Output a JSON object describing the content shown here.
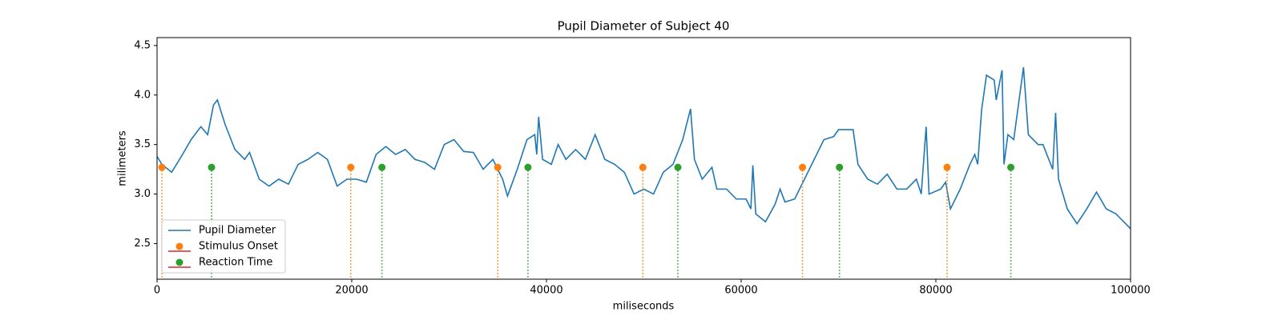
{
  "chart_data": {
    "type": "line",
    "title": "Pupil Diameter of Subject 40",
    "x_label": "miliseconds",
    "y_label": "milimeters",
    "xlim": [
      0,
      100000
    ],
    "ylim": [
      2.14,
      4.58
    ],
    "xticks": [
      0,
      20000,
      40000,
      60000,
      80000,
      100000
    ],
    "yticks": [
      2.5,
      {
        "value": 3,
        "label": "3.0"
      },
      3.5,
      {
        "value": 4,
        "label": "4.0"
      },
      4.5
    ],
    "legend": "lower left",
    "series": [
      {
        "name": "Pupil Diameter",
        "type": "line",
        "color": "#1f77b4",
        "x": [
          0,
          500,
          1500,
          2500,
          3500,
          4500,
          5200,
          5800,
          6200,
          7000,
          8000,
          9000,
          9500,
          10500,
          11500,
          12500,
          13500,
          14500,
          15500,
          16500,
          17500,
          18500,
          19500,
          20500,
          21500,
          22500,
          23500,
          24500,
          25500,
          26500,
          27500,
          28500,
          29500,
          30500,
          31500,
          32500,
          33500,
          34500,
          35500,
          36000,
          37000,
          38000,
          38800,
          39000,
          39200,
          39600,
          40500,
          41200,
          42000,
          43000,
          44000,
          45000,
          46000,
          47000,
          48000,
          49000,
          50000,
          51000,
          52000,
          53000,
          54000,
          54800,
          55200,
          56000,
          57000,
          57500,
          58500,
          59500,
          60500,
          61000,
          61200,
          61500,
          62500,
          63500,
          64000,
          64500,
          65500,
          66500,
          67500,
          68500,
          69500,
          70000,
          71500,
          72000,
          73000,
          74000,
          75000,
          76000,
          77000,
          78000,
          78500,
          79000,
          79300,
          80500,
          81000,
          81500,
          82500,
          83500,
          84000,
          84300,
          84700,
          85200,
          86000,
          86200,
          86800,
          87000,
          87400,
          88000,
          89000,
          89500,
          90500,
          91000,
          92000,
          92300,
          92600,
          93500,
          94500,
          95500,
          96500,
          97500,
          98500,
          100000
        ],
        "values": [
          3.38,
          3.3,
          3.22,
          3.38,
          3.55,
          3.68,
          3.6,
          3.9,
          3.95,
          3.7,
          3.45,
          3.35,
          3.42,
          3.15,
          3.08,
          3.15,
          3.1,
          3.3,
          3.35,
          3.42,
          3.35,
          3.08,
          3.15,
          3.15,
          3.12,
          3.4,
          3.48,
          3.4,
          3.45,
          3.35,
          3.32,
          3.25,
          3.5,
          3.55,
          3.43,
          3.42,
          3.25,
          3.35,
          3.15,
          2.98,
          3.25,
          3.55,
          3.6,
          3.4,
          3.78,
          3.35,
          3.3,
          3.5,
          3.35,
          3.45,
          3.35,
          3.6,
          3.35,
          3.3,
          3.22,
          3.0,
          3.05,
          3.0,
          3.22,
          3.3,
          3.55,
          3.86,
          3.35,
          3.15,
          3.27,
          3.05,
          3.05,
          2.95,
          2.95,
          2.85,
          3.29,
          2.8,
          2.72,
          2.9,
          3.05,
          2.92,
          2.95,
          3.15,
          3.35,
          3.55,
          3.58,
          3.65,
          3.65,
          3.3,
          3.15,
          3.1,
          3.2,
          3.05,
          3.05,
          3.15,
          3.0,
          3.68,
          3.0,
          3.05,
          3.12,
          2.85,
          3.05,
          3.3,
          3.4,
          3.3,
          3.85,
          4.2,
          4.15,
          3.95,
          4.25,
          3.3,
          3.6,
          3.55,
          4.28,
          3.6,
          3.5,
          3.5,
          3.25,
          3.82,
          3.15,
          2.85,
          2.7,
          2.85,
          3.02,
          2.85,
          2.8,
          2.65
        ]
      },
      {
        "name": "Stimulus Onset",
        "type": "stem",
        "color": "#ff7f0e",
        "baseline_color": "#d62728",
        "x": [
          500,
          19900,
          35000,
          49900,
          66300,
          81150
        ],
        "values": [
          3.27,
          3.27,
          3.27,
          3.27,
          3.27,
          3.27
        ]
      },
      {
        "name": "Reaction Time",
        "type": "stem",
        "color": "#2ca02c",
        "baseline_color": "#d62728",
        "x": [
          5600,
          23100,
          38100,
          53500,
          70100,
          87700
        ],
        "values": [
          3.27,
          3.27,
          3.27,
          3.27,
          3.27,
          3.27
        ]
      }
    ]
  }
}
